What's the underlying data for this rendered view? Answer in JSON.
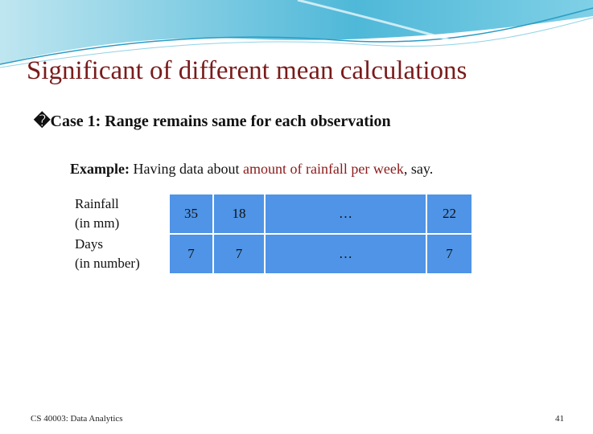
{
  "title": "Significant of different mean calculations",
  "bullet": {
    "glyph": "�",
    "text": "Case 1: Range remains same for each observation"
  },
  "example": {
    "label": "Example:",
    "before": " Having data about ",
    "highlight": "amount of rainfall per week",
    "after": ", say."
  },
  "table": {
    "rows": [
      [
        "Rainfall\n(in mm)",
        35,
        18,
        "…",
        22
      ],
      [
        "Days\n(in number)",
        7,
        7,
        "…",
        7
      ]
    ]
  },
  "footer": {
    "course": "CS 40003: Data Analytics",
    "page": 41
  }
}
